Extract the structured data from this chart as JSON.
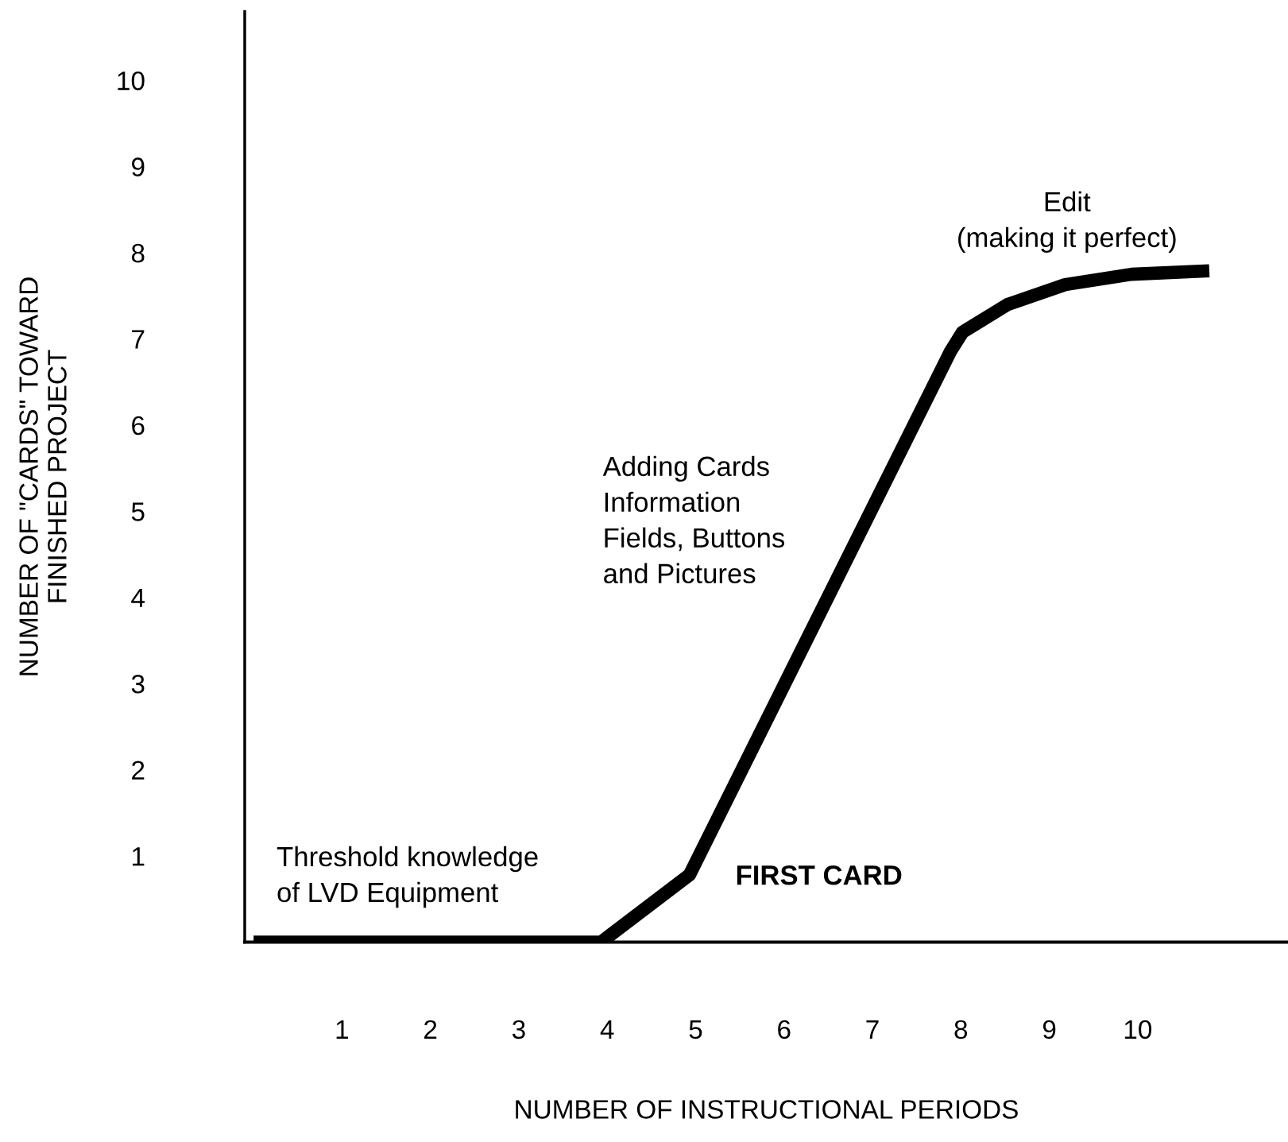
{
  "chart_data": {
    "type": "line",
    "xlabel": "NUMBER OF INSTRUCTIONAL PERIODS",
    "ylabel": "NUMBER OF \"CARDS\" TOWARD\nFINISHED PROJECT",
    "x": [
      0,
      3.93,
      4.93,
      7.88,
      8.02,
      8.53,
      9.18,
      9.93,
      10.81
    ],
    "series": [
      {
        "color": "#000000",
        "values": [
          0,
          0,
          0.78,
          6.85,
          7.08,
          7.4,
          7.63,
          7.75,
          7.79
        ]
      }
    ],
    "xlim": [
      -0.1,
      11.7
    ],
    "ylim": [
      0,
      10.8
    ],
    "xticks": [
      1,
      2,
      3,
      4,
      5,
      6,
      7,
      8,
      9,
      10
    ],
    "yticks": [
      1,
      2,
      3,
      4,
      5,
      6,
      7,
      8,
      9,
      10
    ],
    "grid": false,
    "legend": false,
    "marker": "none",
    "line_style": "solid",
    "annotations": [
      "Threshold knowledge\nof LVD Equipment",
      "FIRST CARD",
      "Adding Cards\nInformation\nFields, Buttons\nand Pictures",
      "Edit\n(making it perfect)"
    ]
  }
}
